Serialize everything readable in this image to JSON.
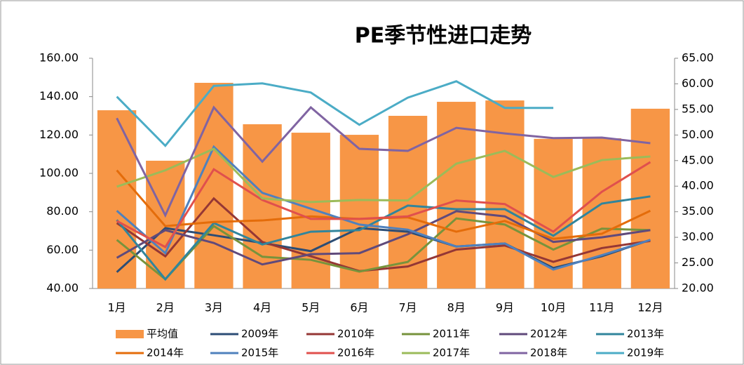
{
  "chart_data": {
    "type": "bar_line",
    "title": "PE季节性进口走势",
    "categories": [
      "1月",
      "2月",
      "3月",
      "4月",
      "5月",
      "6月",
      "7月",
      "8月",
      "9月",
      "10月",
      "11月",
      "12月"
    ],
    "ylim": [
      40,
      160
    ],
    "yticks": [
      {
        "value": 40,
        "label": "40.00"
      },
      {
        "value": 60,
        "label": "60.00"
      },
      {
        "value": 80,
        "label": "80.00"
      },
      {
        "value": 100,
        "label": "100.00"
      },
      {
        "value": 120,
        "label": "120.00"
      },
      {
        "value": 140,
        "label": "140.00"
      },
      {
        "value": 160,
        "label": "160.00"
      }
    ],
    "y2lim": [
      20,
      65
    ],
    "y2ticks": [
      {
        "value": 20,
        "label": "20.00"
      },
      {
        "value": 25,
        "label": "25.00"
      },
      {
        "value": 30,
        "label": "30.00"
      },
      {
        "value": 35,
        "label": "35.00"
      },
      {
        "value": 40,
        "label": "40.00"
      },
      {
        "value": 45,
        "label": "45.00"
      },
      {
        "value": 50,
        "label": "50.00"
      },
      {
        "value": 55,
        "label": "55.00"
      },
      {
        "value": 60,
        "label": "60.00"
      },
      {
        "value": 65,
        "label": "65.00"
      }
    ],
    "series": [
      {
        "name": "平均值",
        "type": "bar",
        "axis": "y",
        "color": "#f79646",
        "values": [
          132.9,
          106.6,
          147.2,
          125.6,
          121.2,
          120.1,
          130,
          137.3,
          138,
          118,
          118.3,
          133.7
        ]
      },
      {
        "name": "2009年",
        "type": "line",
        "axis": "y2",
        "color": "#2c4d75",
        "values": [
          23.2,
          31.8,
          30.4,
          28.9,
          27.3,
          31.8,
          31.1,
          28.2,
          28.8,
          24.0,
          26.3,
          29.5
        ]
      },
      {
        "name": "2010年",
        "type": "line",
        "axis": "y2",
        "color": "#953735",
        "values": [
          32.8,
          26.3,
          37.6,
          29.1,
          26.3,
          23.4,
          24.3,
          27.6,
          28.4,
          25.2,
          27.9,
          29.3
        ]
      },
      {
        "name": "2011年",
        "type": "line",
        "axis": "y2",
        "color": "#77933c",
        "values": [
          29.5,
          21.8,
          32.2,
          26.2,
          25.6,
          23.3,
          25.2,
          33.7,
          32.5,
          27.6,
          31.7,
          31.4
        ]
      },
      {
        "name": "2012年",
        "type": "line",
        "axis": "y2",
        "color": "#604a7b",
        "values": [
          26.0,
          31.4,
          28.9,
          24.7,
          26.7,
          26.9,
          30.6,
          35.1,
          34.1,
          29.1,
          30.0,
          31.4
        ]
      },
      {
        "name": "2013年",
        "type": "line",
        "axis": "y2",
        "color": "#31859c",
        "values": [
          33.4,
          21.8,
          32.8,
          28.6,
          31.1,
          31.4,
          36.2,
          35.5,
          35.5,
          30.3,
          36.6,
          38.0
        ]
      },
      {
        "name": "2014年",
        "type": "line",
        "axis": "y2",
        "color": "#e46c0a",
        "values": [
          43.1,
          32.2,
          33.0,
          33.3,
          34.1,
          33.6,
          33.9,
          31.1,
          33.2,
          29.7,
          30.7,
          35.2
        ]
      },
      {
        "name": "2015年",
        "type": "line",
        "axis": "y2",
        "color": "#4f81bd",
        "values": [
          35.2,
          26.9,
          47.7,
          38.7,
          35.6,
          32.5,
          31.5,
          28.2,
          28.8,
          23.7,
          26.5,
          29.5
        ]
      },
      {
        "name": "2016年",
        "type": "line",
        "axis": "y2",
        "color": "#e0504d",
        "values": [
          33.2,
          28.1,
          43.3,
          37.3,
          33.6,
          33.6,
          34.1,
          37.2,
          36.5,
          31.1,
          38.9,
          44.7
        ]
      },
      {
        "name": "2017年",
        "type": "line",
        "axis": "y2",
        "color": "#9bbb59",
        "values": [
          39.9,
          43.1,
          47.3,
          37.6,
          36.9,
          37.3,
          37.2,
          44.4,
          46.9,
          41.8,
          45.1,
          45.8
        ]
      },
      {
        "name": "2018年",
        "type": "line",
        "axis": "y2",
        "color": "#8064a2",
        "values": [
          53.3,
          34.3,
          55.4,
          44.8,
          55.4,
          47.3,
          46.9,
          51.4,
          50.3,
          49.4,
          49.5,
          48.4
        ]
      },
      {
        "name": "2019年",
        "type": "line",
        "axis": "y2",
        "color": "#4bacc6",
        "values": [
          57.5,
          47.9,
          59.6,
          60.1,
          58.3,
          52.0,
          57.3,
          60.5,
          55.3,
          55.3,
          null,
          null
        ]
      }
    ]
  }
}
